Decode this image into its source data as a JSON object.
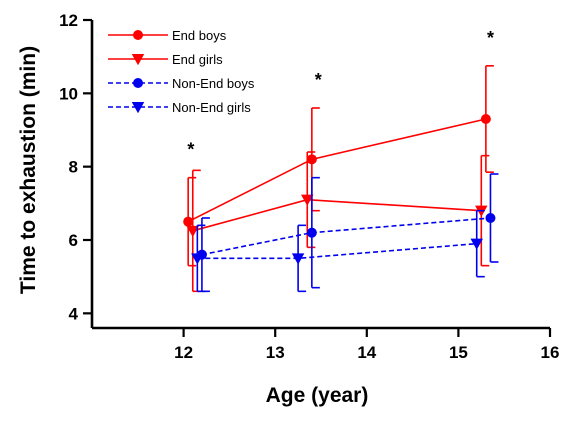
{
  "chart_data": {
    "type": "line",
    "xlabel": "Age (year)",
    "ylabel": "Time to exhaustion (min)",
    "xlim": [
      11,
      16
    ],
    "ylim": [
      3.6,
      12
    ],
    "xticks": [
      12,
      13,
      14,
      15,
      16
    ],
    "yticks": [
      4,
      6,
      8,
      10,
      12
    ],
    "legend_position": "top-left",
    "grid": false,
    "series": [
      {
        "name": "End boys",
        "color": "#ff0000",
        "marker": "circle",
        "line_style": "solid",
        "x": [
          12.05,
          13.4,
          15.3
        ],
        "y": [
          6.5,
          8.2,
          9.3
        ],
        "error": [
          1.2,
          1.4,
          1.45
        ]
      },
      {
        "name": "End girls",
        "color": "#ff0000",
        "marker": "triangle-down",
        "line_style": "solid",
        "x": [
          12.1,
          13.35,
          15.25
        ],
        "y": [
          6.25,
          7.1,
          6.8
        ],
        "error": [
          1.65,
          1.3,
          1.5
        ]
      },
      {
        "name": "Non-End boys",
        "color": "#0000ee",
        "marker": "circle",
        "line_style": "dashed",
        "x": [
          12.2,
          13.4,
          15.35
        ],
        "y": [
          5.6,
          6.2,
          6.6
        ],
        "error": [
          1.0,
          1.5,
          1.2
        ]
      },
      {
        "name": "Non-End girls",
        "color": "#0000ee",
        "marker": "triangle-down",
        "line_style": "dashed",
        "x": [
          12.15,
          13.25,
          15.2
        ],
        "y": [
          5.5,
          5.5,
          5.9
        ],
        "error": [
          0.9,
          0.9,
          0.9
        ]
      }
    ],
    "annotations": [
      {
        "text": "*",
        "x": 12.08,
        "y": 8.3
      },
      {
        "text": "*",
        "x": 13.47,
        "y": 10.2
      },
      {
        "text": "*",
        "x": 15.35,
        "y": 11.35
      }
    ]
  }
}
